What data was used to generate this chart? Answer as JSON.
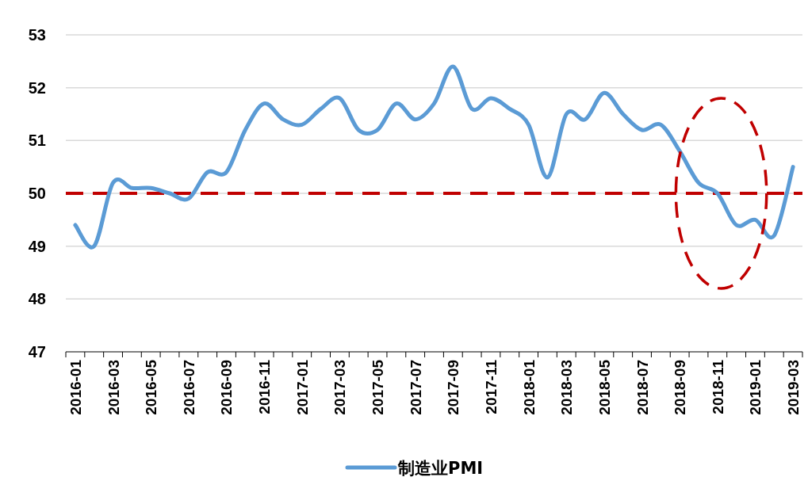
{
  "chart_data": {
    "type": "line",
    "categories": [
      "2016-01",
      null,
      "2016-03",
      null,
      "2016-05",
      null,
      "2016-07",
      null,
      "2016-09",
      null,
      "2016-11",
      null,
      "2017-01",
      null,
      "2017-03",
      null,
      "2017-05",
      null,
      "2017-07",
      null,
      "2017-09",
      null,
      "2017-11",
      null,
      "2018-01",
      null,
      "2018-03",
      null,
      "2018-05",
      null,
      "2018-07",
      null,
      "2018-09",
      null,
      "2018-11",
      null,
      "2019-01",
      null,
      "2019-03"
    ],
    "series": [
      {
        "name": "制造业PMI",
        "color": "#5b9bd5",
        "values": [
          49.4,
          49.0,
          50.2,
          50.1,
          50.1,
          50.0,
          49.9,
          50.4,
          50.4,
          51.2,
          51.7,
          51.4,
          51.3,
          51.6,
          51.8,
          51.2,
          51.2,
          51.7,
          51.4,
          51.7,
          52.4,
          51.6,
          51.8,
          51.6,
          51.3,
          50.3,
          51.5,
          51.4,
          51.9,
          51.5,
          51.2,
          51.3,
          50.8,
          50.2,
          50.0,
          49.4,
          49.5,
          49.2,
          50.5
        ]
      }
    ],
    "ylim": [
      47,
      53
    ],
    "yticks": [
      47,
      48,
      49,
      50,
      51,
      52,
      53
    ],
    "grid": "y",
    "legend": "bottom",
    "ref_lines": [
      {
        "axis": "y",
        "value": 50,
        "color": "#c00000",
        "line_style": "dashed"
      }
    ]
  }
}
